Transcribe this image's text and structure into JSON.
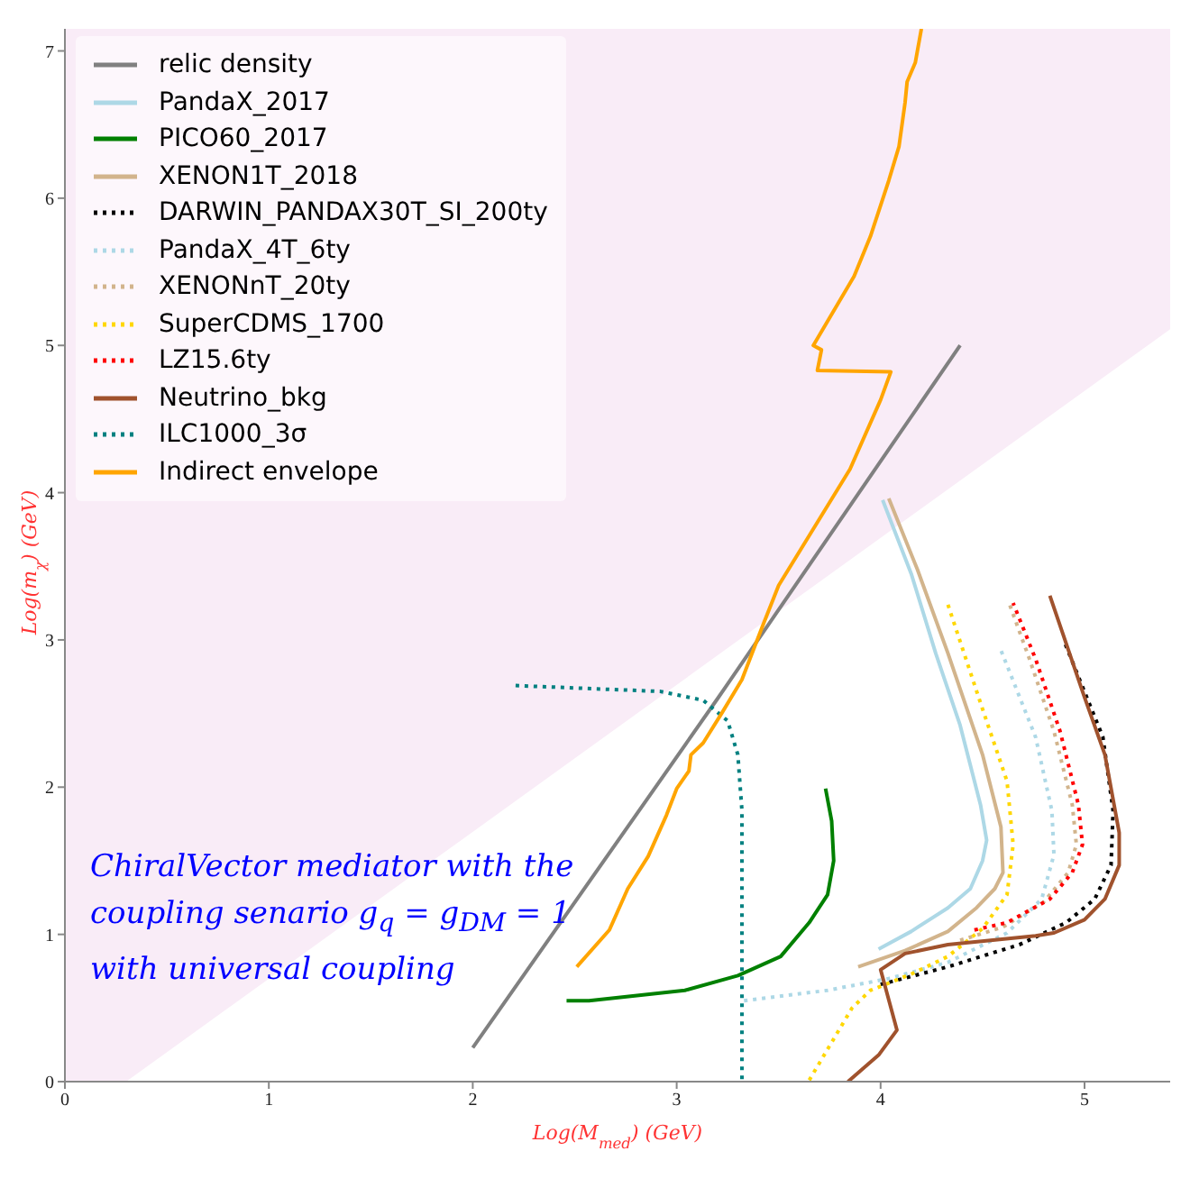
{
  "chart_data": {
    "type": "line",
    "xlabel": "Log(M$_{med}$)  (GeV)",
    "ylabel": "Log(m$_{χ}$)  (GeV)",
    "xlim": [
      0,
      5.42
    ],
    "ylim": [
      0,
      7.15
    ],
    "xticks": [
      0,
      1,
      2,
      3,
      4,
      5
    ],
    "yticks": [
      0,
      1,
      2,
      3,
      4,
      5,
      6,
      7
    ],
    "grid": false,
    "legend": "top left",
    "marker": "none",
    "bands": [
      {
        "axis": "x",
        "from": 0,
        "to": 5.42,
        "color": "#f9ecf7"
      }
    ],
    "annotations": [
      "ChiralVector mediator with the",
      "coupling senario g$_{q}$ = g$_{DM}$ = 1",
      "with universal coupling"
    ],
    "series": [
      {
        "type": "area",
        "color": "#ffffff",
        "x": [
          0,
          0.3,
          5.42
        ],
        "values": [
          0,
          0,
          5.11
        ]
      },
      {
        "name": "relic density",
        "color": "#808080",
        "line_style": "solid",
        "x": [
          2.0,
          3.2,
          4.39
        ],
        "values": [
          0.23,
          2.6,
          5.0
        ]
      },
      {
        "name": "PandaX_2017",
        "color": "#add8e6",
        "line_style": "solid",
        "x": [
          3.99,
          4.15,
          4.33,
          4.44,
          4.5,
          4.52,
          4.49,
          4.39,
          4.27,
          4.15,
          4.01
        ],
        "values": [
          0.9,
          1.02,
          1.18,
          1.31,
          1.5,
          1.64,
          1.88,
          2.42,
          2.91,
          3.45,
          3.95
        ]
      },
      {
        "name": "PICO60_2017",
        "color": "#008000",
        "line_style": "solid",
        "x": [
          2.46,
          2.57,
          3.04,
          3.3,
          3.51,
          3.65,
          3.74,
          3.77,
          3.76,
          3.73
        ],
        "values": [
          0.55,
          0.55,
          0.62,
          0.72,
          0.85,
          1.08,
          1.27,
          1.5,
          1.77,
          1.99
        ]
      },
      {
        "name": "XENON1T_2018",
        "color": "#d2b48c",
        "line_style": "solid",
        "x": [
          3.89,
          4.12,
          4.33,
          4.47,
          4.56,
          4.6,
          4.59,
          4.5,
          4.33,
          4.18,
          4.04
        ],
        "values": [
          0.78,
          0.89,
          1.02,
          1.18,
          1.31,
          1.42,
          1.73,
          2.22,
          2.91,
          3.48,
          3.96
        ]
      },
      {
        "name": "DARWIN_PANDAX30T_SI_200ty",
        "color": "#000000",
        "line_style": "dotted",
        "x": [
          4.0,
          4.33,
          4.68,
          4.91,
          5.05,
          5.13,
          5.14,
          5.09,
          4.9
        ],
        "values": [
          0.66,
          0.78,
          0.93,
          1.08,
          1.24,
          1.47,
          1.84,
          2.34,
          2.99
        ]
      },
      {
        "name": "PandaX_4T_6ty",
        "color": "#add8e6",
        "line_style": "dotted",
        "x": [
          3.33,
          3.74,
          4.04,
          4.33,
          4.62,
          4.79,
          4.85,
          4.84,
          4.76,
          4.59
        ],
        "values": [
          0.55,
          0.62,
          0.7,
          0.81,
          1.01,
          1.24,
          1.54,
          1.84,
          2.34,
          2.93
        ]
      },
      {
        "name": "XENONnT_20ty",
        "color": "#d2b48c",
        "line_style": "dotted",
        "x": [
          4.39,
          4.6,
          4.8,
          4.92,
          4.96,
          4.94,
          4.85,
          4.73,
          4.63
        ],
        "values": [
          0.96,
          1.05,
          1.22,
          1.42,
          1.61,
          1.88,
          2.38,
          2.87,
          3.25
        ]
      },
      {
        "name": "SuperCDMS_1700",
        "color": "#ffd700",
        "line_style": "dotted",
        "x": [
          3.65,
          3.86,
          3.95,
          4.15,
          4.33,
          4.5,
          4.62,
          4.65,
          4.62,
          4.5,
          4.33
        ],
        "values": [
          0.01,
          0.5,
          0.62,
          0.73,
          0.85,
          1.04,
          1.27,
          1.61,
          2.04,
          2.53,
          3.24
        ]
      },
      {
        "name": "LZ15.6ty",
        "color": "#ff0000",
        "line_style": "dotted",
        "x": [
          4.46,
          4.62,
          4.83,
          4.94,
          4.99,
          4.97,
          4.88,
          4.76,
          4.65
        ],
        "values": [
          1.03,
          1.08,
          1.24,
          1.42,
          1.61,
          1.88,
          2.38,
          2.87,
          3.25
        ]
      },
      {
        "name": "Neutrino_bkg",
        "color": "#a0522d",
        "line_style": "solid",
        "x": [
          3.84,
          3.99,
          4.08,
          4.0,
          4.12,
          4.33,
          4.76,
          4.85,
          5.0,
          5.1,
          5.17,
          5.17,
          5.1,
          5.0,
          4.83
        ],
        "values": [
          0,
          0.18,
          0.35,
          0.76,
          0.87,
          0.93,
          0.99,
          1.01,
          1.1,
          1.24,
          1.47,
          1.69,
          2.22,
          2.61,
          3.3
        ]
      },
      {
        "name": "ILC1000_3σ",
        "color": "#008080",
        "line_style": "dotted",
        "x": [
          2.21,
          2.92,
          3.13,
          3.25,
          3.3,
          3.32,
          3.32
        ],
        "values": [
          2.69,
          2.65,
          2.59,
          2.45,
          2.22,
          1.84,
          0
        ]
      },
      {
        "name": "Indirect envelope",
        "color": "#ffa500",
        "line_style": "solid",
        "x": [
          2.51,
          2.67,
          2.76,
          2.86,
          2.95,
          3.0,
          3.06,
          3.07,
          3.13,
          3.22,
          3.32,
          3.42,
          3.5,
          3.85,
          4.0,
          4.05,
          3.69,
          3.71,
          3.67,
          3.87,
          3.95,
          4.04,
          4.09,
          4.12,
          4.13,
          4.17,
          4.2
        ],
        "values": [
          0.78,
          1.03,
          1.31,
          1.53,
          1.81,
          1.99,
          2.11,
          2.22,
          2.3,
          2.5,
          2.73,
          3.09,
          3.37,
          4.16,
          4.63,
          4.82,
          4.83,
          4.97,
          5.0,
          5.47,
          5.74,
          6.12,
          6.35,
          6.65,
          6.79,
          6.92,
          7.15
        ]
      }
    ]
  }
}
